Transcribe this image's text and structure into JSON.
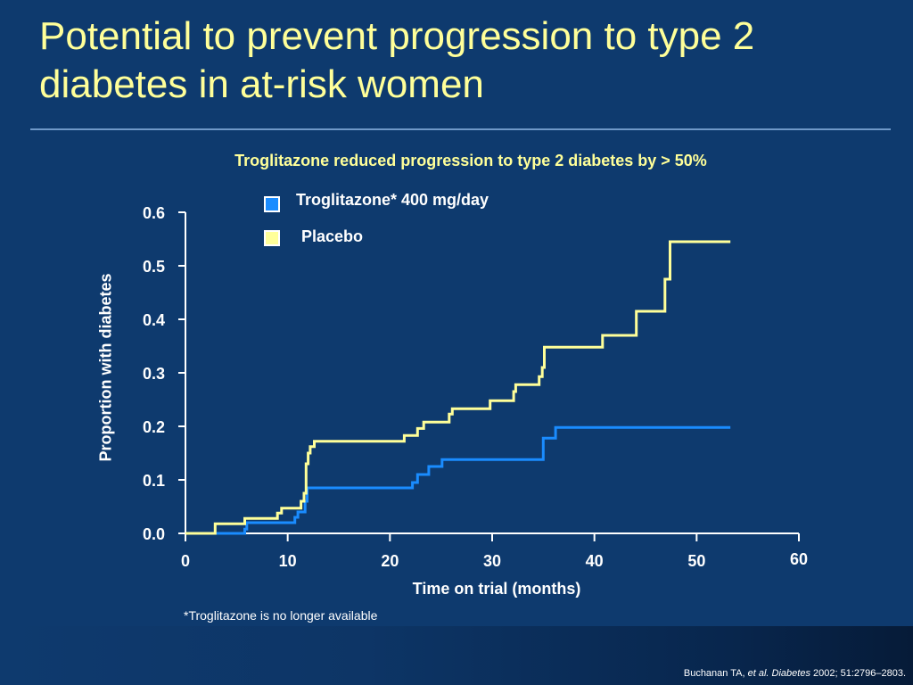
{
  "slide": {
    "title_line1": "Potential to prevent progression to type 2",
    "title_line2": "diabetes in at-risk women",
    "subtitle": "Troglitazone reduced progression to type 2 diabetes by > 50%",
    "footnote": "*Troglitazone is no longer available",
    "citation": {
      "author": "Buchanan TA, ",
      "etal_journal": "et al. Diabetes",
      "rest": " 2002; 51:2796–2803."
    },
    "colors": {
      "background": "#0e3a6e",
      "title": "#ffff99",
      "troglitazone": "#1a8cff",
      "placebo": "#ffff99"
    }
  },
  "chart_data": {
    "type": "line",
    "step": true,
    "xlabel": "Time on trial (months)",
    "ylabel": "Proportion with diabetes",
    "xlim": [
      0,
      60
    ],
    "ylim": [
      0,
      0.6
    ],
    "xticks": [
      0,
      10,
      20,
      30,
      40,
      50,
      60
    ],
    "xtick_labels": [
      "0",
      "10",
      "20",
      "30",
      "40",
      "50",
      "60"
    ],
    "yticks": [
      0,
      0.1,
      0.2,
      0.3,
      0.4,
      0.5,
      0.6
    ],
    "ytick_labels": [
      "0.0",
      "0.1",
      "0.2",
      "0.3",
      "0.4",
      "0.5",
      "0.6"
    ],
    "grid": false,
    "legend_position": "top-center",
    "series": [
      {
        "name": "Troglitazone* 400 mg/day",
        "color": "#1a8cff",
        "points": [
          [
            0,
            0.0
          ],
          [
            5.8,
            0.0
          ],
          [
            5.8,
            0.008
          ],
          [
            6.0,
            0.008
          ],
          [
            6.0,
            0.02
          ],
          [
            10.7,
            0.02
          ],
          [
            10.7,
            0.03
          ],
          [
            11.0,
            0.03
          ],
          [
            11.0,
            0.04
          ],
          [
            11.7,
            0.04
          ],
          [
            11.7,
            0.06
          ],
          [
            11.9,
            0.06
          ],
          [
            11.9,
            0.085
          ],
          [
            22.2,
            0.085
          ],
          [
            22.2,
            0.095
          ],
          [
            22.7,
            0.095
          ],
          [
            22.7,
            0.11
          ],
          [
            23.8,
            0.11
          ],
          [
            23.8,
            0.125
          ],
          [
            25.1,
            0.125
          ],
          [
            25.1,
            0.138
          ],
          [
            35.0,
            0.138
          ],
          [
            35.0,
            0.178
          ],
          [
            36.2,
            0.178
          ],
          [
            36.2,
            0.198
          ],
          [
            53.3,
            0.198
          ]
        ]
      },
      {
        "name": "Placebo",
        "color": "#ffff99",
        "points": [
          [
            0,
            0.0
          ],
          [
            2.9,
            0.0
          ],
          [
            2.9,
            0.018
          ],
          [
            5.8,
            0.018
          ],
          [
            5.8,
            0.028
          ],
          [
            9.0,
            0.028
          ],
          [
            9.0,
            0.038
          ],
          [
            9.4,
            0.038
          ],
          [
            9.4,
            0.047
          ],
          [
            11.3,
            0.047
          ],
          [
            11.3,
            0.06
          ],
          [
            11.6,
            0.06
          ],
          [
            11.6,
            0.075
          ],
          [
            11.8,
            0.075
          ],
          [
            11.8,
            0.13
          ],
          [
            12.0,
            0.13
          ],
          [
            12.0,
            0.15
          ],
          [
            12.2,
            0.15
          ],
          [
            12.2,
            0.162
          ],
          [
            12.6,
            0.162
          ],
          [
            12.6,
            0.172
          ],
          [
            21.4,
            0.172
          ],
          [
            21.4,
            0.183
          ],
          [
            22.7,
            0.183
          ],
          [
            22.7,
            0.196
          ],
          [
            23.3,
            0.196
          ],
          [
            23.3,
            0.208
          ],
          [
            25.8,
            0.208
          ],
          [
            25.8,
            0.223
          ],
          [
            26.1,
            0.223
          ],
          [
            26.1,
            0.233
          ],
          [
            29.8,
            0.233
          ],
          [
            29.8,
            0.248
          ],
          [
            32.1,
            0.248
          ],
          [
            32.1,
            0.265
          ],
          [
            32.3,
            0.265
          ],
          [
            32.3,
            0.278
          ],
          [
            34.6,
            0.278
          ],
          [
            34.6,
            0.293
          ],
          [
            34.9,
            0.293
          ],
          [
            34.9,
            0.31
          ],
          [
            35.1,
            0.31
          ],
          [
            35.1,
            0.348
          ],
          [
            40.8,
            0.348
          ],
          [
            40.8,
            0.37
          ],
          [
            44.1,
            0.37
          ],
          [
            44.1,
            0.415
          ],
          [
            46.9,
            0.415
          ],
          [
            46.9,
            0.475
          ],
          [
            47.4,
            0.475
          ],
          [
            47.4,
            0.545
          ],
          [
            53.3,
            0.545
          ]
        ]
      }
    ]
  }
}
